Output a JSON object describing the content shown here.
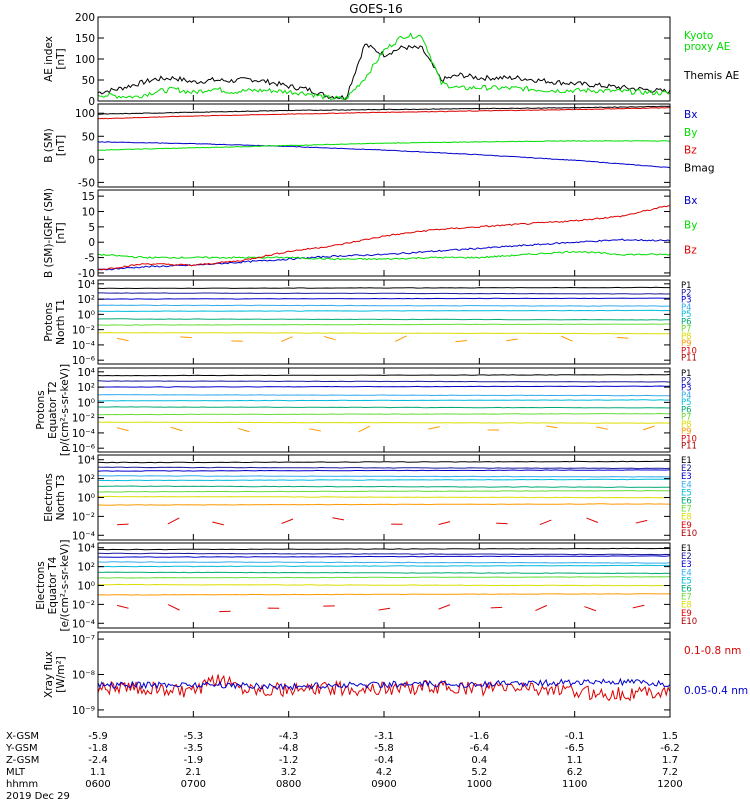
{
  "title": "GOES-16",
  "colors": {
    "black": "#000000",
    "green": "#00dd00",
    "red": "#dd0000",
    "blue": "#0000cc",
    "navy": "#1a1a9a",
    "cyan": "#00bbdd",
    "teal": "#00aa77",
    "yellow": "#dddd00",
    "orange": "#ff9900",
    "darkred": "#aa0000",
    "lightblue": "#33aaee",
    "lime": "#66dd33"
  },
  "ephemeris": {
    "row_labels": [
      "X-GSM",
      "Y-GSM",
      "Z-GSM",
      "MLT",
      "hhmm"
    ],
    "columns": [
      {
        "x": "-5.9",
        "y": "-1.8",
        "z": "-2.4",
        "mlt": "1.1",
        "hhmm": "0600"
      },
      {
        "x": "-5.3",
        "y": "-3.5",
        "z": "-1.9",
        "mlt": "2.1",
        "hhmm": "0700"
      },
      {
        "x": "-4.3",
        "y": "-4.8",
        "z": "-1.2",
        "mlt": "3.2",
        "hhmm": "0800"
      },
      {
        "x": "-3.1",
        "y": "-5.8",
        "z": "-0.4",
        "mlt": "4.2",
        "hhmm": "0900"
      },
      {
        "x": "-1.6",
        "y": "-6.4",
        "z": "0.4",
        "mlt": "5.2",
        "hhmm": "1000"
      },
      {
        "x": "-0.1",
        "y": "-6.5",
        "z": "1.1",
        "mlt": "6.2",
        "hhmm": "1100"
      },
      {
        "x": "1.5",
        "y": "-6.2",
        "z": "1.7",
        "mlt": "7.2",
        "hhmm": "1200"
      }
    ],
    "date": "2019 Dec 29"
  },
  "chart_data": [
    {
      "type": "line",
      "id": "ae",
      "ylabel": [
        "AE index",
        "[nT]"
      ],
      "ylim": [
        0,
        200
      ],
      "yticks": [
        "0",
        "50",
        "100",
        "150",
        "200"
      ],
      "ytick_values": [
        0,
        50,
        100,
        150,
        200
      ],
      "x": [
        6.0,
        6.2,
        6.4,
        6.6,
        6.8,
        7.0,
        7.2,
        7.4,
        7.6,
        7.8,
        8.0,
        8.2,
        8.4,
        8.6,
        8.8,
        9.0,
        9.2,
        9.4,
        9.6,
        9.8,
        10.0,
        10.4,
        10.8,
        11.2,
        11.6,
        12.0
      ],
      "series": [
        {
          "name": "Themis AE",
          "color": "black",
          "values": [
            20,
            28,
            40,
            52,
            55,
            45,
            50,
            48,
            52,
            45,
            35,
            28,
            12,
            8,
            135,
            110,
            128,
            125,
            50,
            62,
            55,
            55,
            45,
            38,
            30,
            22
          ]
        },
        {
          "name": "Kyoto proxy AE",
          "color": "green",
          "values": [
            15,
            12,
            10,
            22,
            28,
            20,
            30,
            22,
            25,
            25,
            22,
            18,
            8,
            5,
            55,
            120,
            155,
            155,
            42,
            30,
            32,
            30,
            25,
            25,
            22,
            18
          ]
        }
      ]
    },
    {
      "type": "line",
      "id": "bsm",
      "ylabel": [
        "B (SM)",
        "[nT]"
      ],
      "ylim": [
        -60,
        120
      ],
      "yticks": [
        "-50",
        "0",
        "50",
        "100"
      ],
      "ytick_values": [
        -50,
        0,
        50,
        100
      ],
      "x": [
        6,
        7,
        8,
        9,
        10,
        11,
        12
      ],
      "series": [
        {
          "name": "Bx",
          "color": "blue",
          "values": [
            38,
            34,
            28,
            20,
            10,
            -2,
            -18
          ]
        },
        {
          "name": "By",
          "color": "green",
          "values": [
            20,
            25,
            30,
            35,
            38,
            40,
            40
          ]
        },
        {
          "name": "Bz",
          "color": "red",
          "values": [
            88,
            94,
            98,
            102,
            105,
            108,
            112
          ]
        },
        {
          "name": "Bmag",
          "color": "black",
          "values": [
            98,
            102,
            106,
            108,
            110,
            112,
            115
          ]
        }
      ]
    },
    {
      "type": "line",
      "id": "bigrf",
      "ylabel": [
        "B (SM)-IGRF (SM)",
        "[nT]"
      ],
      "ylim": [
        -11,
        17
      ],
      "yticks": [
        "-10",
        "-5",
        "0",
        "5",
        "10",
        "15"
      ],
      "ytick_values": [
        -10,
        -5,
        0,
        5,
        10,
        15
      ],
      "x": [
        6,
        6.5,
        7,
        7.5,
        8,
        8.5,
        9,
        9.5,
        10,
        10.5,
        11,
        11.5,
        12
      ],
      "series": [
        {
          "name": "Bx",
          "color": "blue",
          "values": [
            -9,
            -8,
            -7.5,
            -6.5,
            -5.5,
            -4.5,
            -4,
            -3,
            -2,
            -1,
            0,
            0.8,
            0.5
          ]
        },
        {
          "name": "By",
          "color": "green",
          "values": [
            -4,
            -5,
            -5,
            -5,
            -5,
            -5.5,
            -5.5,
            -5,
            -5,
            -4,
            -3,
            -4,
            -4
          ]
        },
        {
          "name": "Bz",
          "color": "red",
          "values": [
            -9,
            -7,
            -7.5,
            -6,
            -3,
            -1,
            2,
            4,
            5,
            6,
            7,
            8.5,
            12
          ]
        }
      ]
    },
    {
      "type": "line",
      "id": "pnorth",
      "log": true,
      "ylabel": [
        "Protons",
        "North T1"
      ],
      "ylim": [
        -6.5,
        4.5
      ],
      "yticks": [
        "10⁻⁶",
        "10⁻⁴",
        "10⁻²",
        "10⁰",
        "10²",
        "10⁴"
      ],
      "ytick_values": [
        -6,
        -4,
        -2,
        0,
        2,
        4
      ],
      "legend": [
        "P1",
        "P2",
        "P3",
        "P4",
        "P5",
        "P6",
        "P7",
        "P8",
        "P9",
        "P10",
        "P11"
      ],
      "legend_colors": [
        "black",
        "navy",
        "blue",
        "lightblue",
        "cyan",
        "teal",
        "lime",
        "yellow",
        "orange",
        "red",
        "darkred"
      ],
      "log_values": [
        3.4,
        2.8,
        2.0,
        1.2,
        0.4,
        -0.6,
        -1.4,
        -2.4,
        -3.2
      ],
      "series_colors": [
        "black",
        "navy",
        "blue",
        "lightblue",
        "cyan",
        "teal",
        "lime",
        "yellow",
        "orange"
      ]
    },
    {
      "type": "line",
      "id": "pequator",
      "log": true,
      "ylabel": [
        "Protons",
        "Equator T2",
        "[p/(cm²-s-sr-keV)]"
      ],
      "ylim": [
        -6.5,
        4.5
      ],
      "yticks": [
        "10⁻⁶",
        "10⁻⁴",
        "10⁻²",
        "10⁰",
        "10²",
        "10⁴"
      ],
      "ytick_values": [
        -6,
        -4,
        -2,
        0,
        2,
        4
      ],
      "legend": [
        "P1",
        "P2",
        "P3",
        "P4",
        "P5",
        "P6",
        "P7",
        "P8",
        "P9",
        "P10",
        "P11"
      ],
      "legend_colors": [
        "black",
        "navy",
        "blue",
        "lightblue",
        "cyan",
        "teal",
        "lime",
        "yellow",
        "orange",
        "red",
        "darkred"
      ],
      "log_values": [
        3.5,
        2.8,
        2.0,
        1.0,
        0.2,
        -0.6,
        -1.6,
        -2.6,
        -3.5
      ],
      "series_colors": [
        "black",
        "navy",
        "blue",
        "lightblue",
        "cyan",
        "teal",
        "lime",
        "yellow",
        "orange"
      ]
    },
    {
      "type": "line",
      "id": "enorth",
      "log": true,
      "ylabel": [
        "Electrons",
        "North T3"
      ],
      "ylim": [
        -4.5,
        4.5
      ],
      "yticks": [
        "10⁻⁴",
        "10⁻²",
        "10⁰",
        "10²",
        "10⁴"
      ],
      "ytick_values": [
        -4,
        -2,
        0,
        2,
        4
      ],
      "legend": [
        "E1",
        "E2",
        "E3",
        "E4",
        "E5",
        "E6",
        "E7",
        "E8",
        "E9",
        "E10"
      ],
      "legend_colors": [
        "black",
        "navy",
        "blue",
        "lightblue",
        "cyan",
        "teal",
        "lime",
        "yellow",
        "red",
        "darkred"
      ],
      "log_values": [
        3.7,
        3.2,
        2.8,
        2.3,
        1.8,
        1.2,
        0.6,
        0.1,
        -0.8,
        -2.5
      ],
      "series_colors": [
        "black",
        "navy",
        "blue",
        "lightblue",
        "cyan",
        "teal",
        "lime",
        "yellow",
        "orange",
        "red"
      ]
    },
    {
      "type": "line",
      "id": "eequator",
      "log": true,
      "ylabel": [
        "Electrons",
        "Equator T4",
        "[e/(cm²-s-sr-keV)]"
      ],
      "ylim": [
        -4.5,
        4.5
      ],
      "yticks": [
        "10⁻⁴",
        "10⁻²",
        "10⁰",
        "10²",
        "10⁴"
      ],
      "ytick_values": [
        -4,
        -2,
        0,
        2,
        4
      ],
      "legend": [
        "E1",
        "E2",
        "E3",
        "E4",
        "E5",
        "E6",
        "E7",
        "E8",
        "E9",
        "E10"
      ],
      "legend_colors": [
        "black",
        "navy",
        "blue",
        "lightblue",
        "cyan",
        "teal",
        "lime",
        "yellow",
        "red",
        "darkred"
      ],
      "log_values": [
        3.8,
        3.4,
        3.0,
        2.5,
        2.0,
        1.4,
        0.8,
        0.1,
        -1.0,
        -2.4
      ],
      "series_colors": [
        "black",
        "navy",
        "blue",
        "lightblue",
        "cyan",
        "teal",
        "lime",
        "yellow",
        "orange",
        "red"
      ]
    },
    {
      "type": "line",
      "id": "xray",
      "log": true,
      "ylabel": [
        "Xray flux",
        "[W/m²]"
      ],
      "ylim": [
        -9.2,
        -6.8
      ],
      "yticks": [
        "10⁻⁹",
        "10⁻⁸",
        "10⁻⁷"
      ],
      "ytick_values": [
        -9,
        -8,
        -7
      ],
      "x": [
        6,
        6.5,
        7,
        7.3,
        7.5,
        8,
        8.5,
        9,
        9.5,
        10,
        10.5,
        11,
        11.5,
        12
      ],
      "series": [
        {
          "name": "0.1-0.8 nm",
          "color": "red",
          "values": [
            -8.35,
            -8.4,
            -8.5,
            -8.1,
            -8.35,
            -8.45,
            -8.4,
            -8.4,
            -8.35,
            -8.4,
            -8.35,
            -8.5,
            -8.55,
            -8.45
          ]
        },
        {
          "name": "0.05-0.4 nm",
          "color": "blue",
          "values": [
            -8.3,
            -8.3,
            -8.28,
            -8.3,
            -8.3,
            -8.35,
            -8.3,
            -8.28,
            -8.28,
            -8.27,
            -8.25,
            -8.22,
            -8.22,
            -8.28
          ]
        }
      ]
    }
  ]
}
